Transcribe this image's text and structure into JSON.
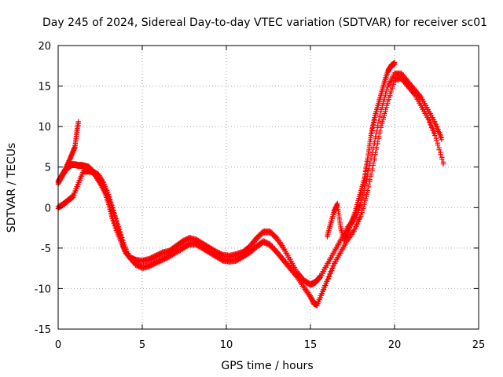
{
  "chart_data": {
    "type": "scatter",
    "title": "Day 245 of 2024, Sidereal Day-to-day VTEC variation (SDTVAR) for receiver sc01",
    "xlabel": "GPS time / hours",
    "ylabel": "SDTVAR / TECUs",
    "xlim": [
      0,
      25
    ],
    "ylim": [
      -15,
      20
    ],
    "xticks": [
      0,
      5,
      10,
      15,
      20,
      25
    ],
    "yticks": [
      -15,
      -10,
      -5,
      0,
      5,
      10,
      15,
      20
    ],
    "xtick_labels": [
      "0",
      "5",
      "10",
      "15",
      "20",
      "25"
    ],
    "ytick_labels": [
      "-15",
      "-10",
      "-5",
      "0",
      "5",
      "10",
      "15",
      "20"
    ],
    "grid": true,
    "marker": "+",
    "color": "#ff0000",
    "series": [
      {
        "name": "trace-main-upper",
        "x": [
          0.0,
          0.2,
          0.4,
          0.6,
          0.8,
          1.0,
          1.2,
          1.4,
          1.6,
          1.8,
          2.0,
          2.2,
          2.5,
          2.8,
          3.0,
          3.2,
          3.5,
          3.8,
          4.0,
          4.3,
          4.6,
          5.0,
          5.4,
          5.8,
          6.2,
          6.6,
          7.0,
          7.4,
          7.8,
          8.2,
          8.6,
          9.0,
          9.4,
          9.8,
          10.2,
          10.6,
          11.0,
          11.4,
          11.8,
          12.2,
          12.6,
          13.0,
          13.4,
          13.8,
          14.2,
          14.6,
          15.0,
          15.3,
          15.6,
          16.0,
          16.4,
          16.8,
          17.2,
          17.6,
          18.0,
          18.4,
          18.8,
          19.2,
          19.6,
          20.0,
          20.4,
          20.8,
          21.2,
          21.6,
          22.0,
          22.4,
          22.8
        ],
        "y": [
          3.0,
          3.8,
          4.5,
          5.0,
          5.3,
          5.3,
          5.2,
          5.2,
          5.1,
          5.0,
          4.6,
          4.0,
          3.0,
          1.8,
          0.5,
          -1.2,
          -3.0,
          -4.5,
          -5.5,
          -6.2,
          -6.5,
          -6.6,
          -6.4,
          -6.0,
          -5.6,
          -5.4,
          -4.8,
          -4.2,
          -3.8,
          -4.0,
          -4.5,
          -5.0,
          -5.5,
          -5.9,
          -6.0,
          -5.8,
          -5.5,
          -4.8,
          -3.8,
          -3.0,
          -3.0,
          -3.8,
          -5.0,
          -6.5,
          -8.0,
          -9.0,
          -9.5,
          -9.2,
          -8.5,
          -7.0,
          -5.5,
          -4.0,
          -2.5,
          -1.5,
          0.5,
          4.0,
          8.0,
          12.0,
          15.0,
          16.5,
          16.5,
          15.5,
          14.5,
          13.5,
          12.0,
          10.5,
          8.5
        ]
      },
      {
        "name": "trace-main-lower",
        "x": [
          0.0,
          0.3,
          0.6,
          0.9,
          1.2,
          1.5,
          1.8,
          2.1,
          2.4,
          2.7,
          3.0,
          3.3,
          3.6,
          3.9,
          4.2,
          4.6,
          5.0,
          5.4,
          5.8,
          6.2,
          6.6,
          7.0,
          7.4,
          7.8,
          8.2,
          8.6,
          9.0,
          9.4,
          9.8,
          10.2,
          10.6,
          11.0,
          11.4,
          11.8,
          12.2,
          12.6,
          13.0,
          13.4,
          13.8,
          14.2,
          14.6,
          15.0,
          15.2,
          15.4,
          15.7,
          16.0,
          16.4,
          16.8,
          17.2,
          17.6,
          18.0,
          18.4,
          18.8,
          19.2,
          19.6,
          20.0,
          20.4,
          20.8,
          21.2,
          21.6,
          22.0,
          22.4,
          22.9
        ],
        "y": [
          0.0,
          0.4,
          0.9,
          1.4,
          3.0,
          4.5,
          4.5,
          4.4,
          4.0,
          3.0,
          1.5,
          -0.5,
          -2.5,
          -4.5,
          -6.0,
          -7.0,
          -7.4,
          -7.2,
          -6.8,
          -6.4,
          -6.0,
          -5.5,
          -5.0,
          -4.5,
          -4.5,
          -5.0,
          -5.5,
          -6.0,
          -6.5,
          -6.6,
          -6.5,
          -6.0,
          -5.5,
          -4.8,
          -4.2,
          -4.6,
          -5.5,
          -6.5,
          -7.5,
          -8.5,
          -9.8,
          -11.0,
          -11.8,
          -12.0,
          -10.5,
          -9.0,
          -7.0,
          -5.5,
          -4.0,
          -2.8,
          -1.0,
          2.0,
          6.0,
          10.0,
          13.0,
          15.8,
          16.0,
          15.0,
          14.0,
          12.5,
          11.0,
          9.0,
          5.5
        ]
      },
      {
        "name": "trace-short-early",
        "x": [
          0.0,
          0.2,
          0.4,
          0.6,
          0.8,
          1.0,
          1.1,
          1.2
        ],
        "y": [
          3.2,
          3.9,
          4.6,
          5.5,
          6.5,
          7.5,
          9.2,
          10.5
        ]
      },
      {
        "name": "trace-short-late",
        "x": [
          16.0,
          16.2,
          16.4,
          16.6,
          16.8,
          17.0,
          17.2,
          17.4,
          17.6,
          17.8,
          18.0,
          18.2,
          18.4,
          18.6,
          18.8,
          19.0,
          19.2,
          19.4,
          19.6,
          19.8,
          20.0
        ],
        "y": [
          -3.5,
          -2.0,
          -0.5,
          0.4,
          -2.5,
          -4.0,
          -3.0,
          -2.0,
          -1.0,
          0.5,
          2.0,
          3.5,
          6.0,
          9.0,
          11.0,
          12.5,
          14.0,
          15.5,
          16.8,
          17.5,
          17.8
        ]
      }
    ]
  }
}
